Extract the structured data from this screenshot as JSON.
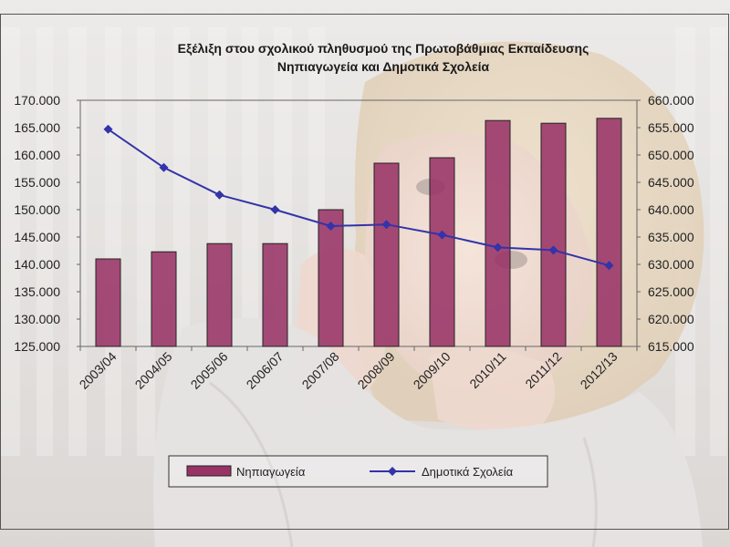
{
  "chart_data": {
    "type": "bar",
    "title": "Εξέλιξη στου σχολικού πληθυσμού της Πρωτοβάθμιας Εκπαίδευσης",
    "subtitle": "Νηπιαγωγεία και Δημοτικά Σχολεία",
    "categories": [
      "2003/04",
      "2004/05",
      "2005/06",
      "2006/07",
      "2007/08",
      "2008/09",
      "2009/10",
      "2010/11",
      "2011/12",
      "2012/13"
    ],
    "series": [
      {
        "name": "Νηπιαγωγεία",
        "type": "bar",
        "axis": "left",
        "color": "#993366",
        "values": [
          141000,
          142300,
          143800,
          143800,
          150000,
          158500,
          159500,
          166300,
          165800,
          166700
        ]
      },
      {
        "name": "Δημοτικά Σχολεία",
        "type": "line",
        "axis": "right",
        "color": "#3333aa",
        "values": [
          654700,
          647700,
          642700,
          640000,
          637000,
          637300,
          635400,
          633100,
          632600,
          629800
        ]
      }
    ],
    "y_left": {
      "ylim": [
        125000,
        170000
      ],
      "ticks": [
        "125.000",
        "130.000",
        "135.000",
        "140.000",
        "145.000",
        "150.000",
        "155.000",
        "160.000",
        "165.000",
        "170.000"
      ]
    },
    "y_right": {
      "ylim": [
        615000,
        660000
      ],
      "ticks": [
        "615.000",
        "620.000",
        "625.000",
        "630.000",
        "635.000",
        "640.000",
        "645.000",
        "650.000",
        "655.000",
        "660.000"
      ]
    },
    "legend": "bottom",
    "grid": false
  }
}
